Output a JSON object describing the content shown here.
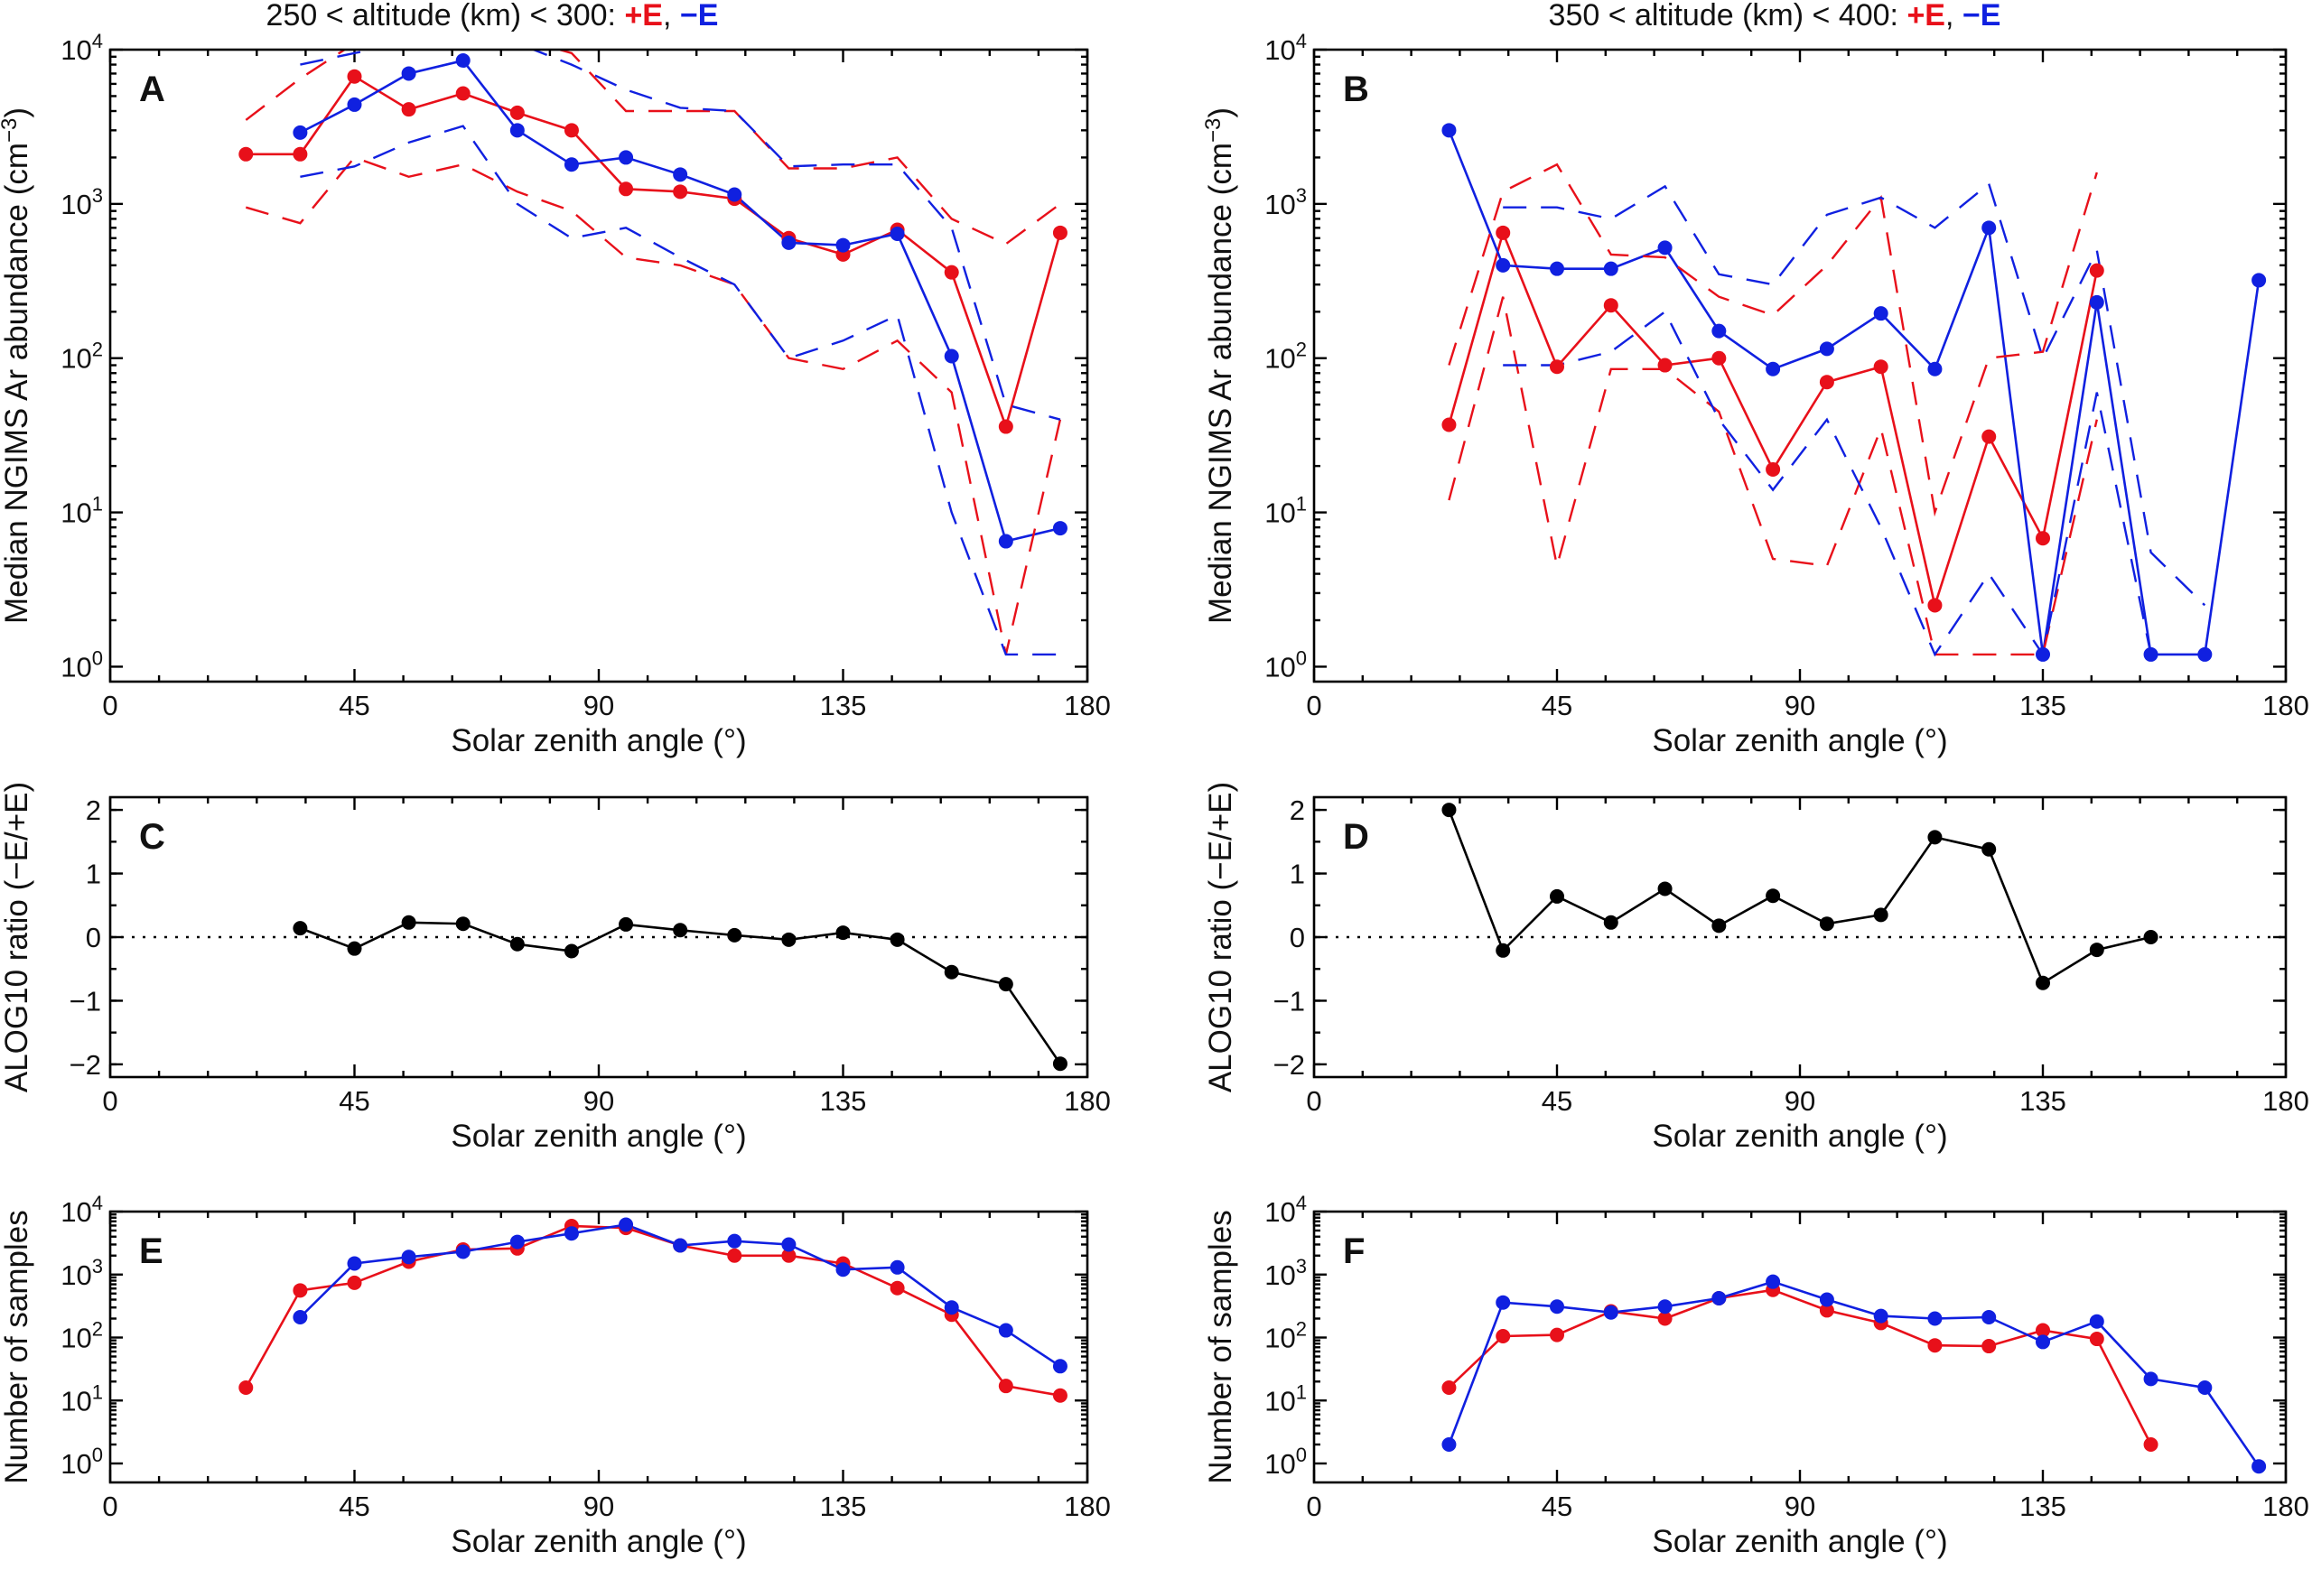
{
  "colors": {
    "plus_e": "#e8101a",
    "minus_e": "#1020e0",
    "ratio": "#000000",
    "axis": "#000000"
  },
  "titles": {
    "low": {
      "prefix": "250 < altitude (km) < 300: ",
      "plus": "+E",
      "sep": ", ",
      "minus": "−E"
    },
    "high": {
      "prefix": "350 < altitude (km) < 400: ",
      "plus": "+E",
      "sep": ", ",
      "minus": "−E"
    }
  },
  "x_ticks": [
    "0",
    "45",
    "90",
    "135",
    "180"
  ],
  "chart_data": [
    {
      "panel": "A",
      "type": "line",
      "yscale": "log",
      "title": "250 < altitude (km) < 300: +E, −E",
      "xlabel": "Solar zenith angle (°)",
      "ylabel": "Median NGIMS Ar abundance (cm⁻³)",
      "xlim": [
        0,
        180
      ],
      "ylim": [
        0.8,
        10000
      ],
      "y_tick_labels": [
        "10⁰",
        "10¹",
        "10²",
        "10³",
        "10⁴"
      ],
      "series": [
        {
          "name": "+E median",
          "color": "red",
          "style": "solid-markers",
          "x": [
            25,
            35,
            45,
            55,
            65,
            75,
            85,
            95,
            105,
            115,
            125,
            135,
            145,
            155,
            165,
            175
          ],
          "y": [
            2100,
            2100,
            6700,
            4100,
            5200,
            3900,
            3000,
            1250,
            1200,
            1080,
            600,
            470,
            680,
            360,
            36,
            650
          ]
        },
        {
          "name": "−E median",
          "color": "blue",
          "style": "solid-markers",
          "x": [
            35,
            45,
            55,
            65,
            75,
            85,
            95,
            105,
            115,
            125,
            135,
            145,
            155,
            165,
            175
          ],
          "y": [
            2900,
            4400,
            7000,
            8500,
            3000,
            1800,
            2000,
            1550,
            1150,
            560,
            540,
            640,
            103,
            6.5,
            7.9
          ]
        },
        {
          "name": "+E upper",
          "color": "red",
          "style": "dashed",
          "x": [
            25,
            35,
            45,
            55,
            65,
            75,
            85,
            95,
            105,
            115,
            125,
            135,
            145,
            155,
            165,
            175
          ],
          "y": [
            3500,
            6500,
            11000,
            11000,
            10500,
            12000,
            9500,
            4000,
            4000,
            4000,
            1700,
            1700,
            2000,
            800,
            550,
            1000
          ]
        },
        {
          "name": "+E lower",
          "color": "red",
          "style": "dashed",
          "x": [
            25,
            35,
            45,
            55,
            65,
            75,
            85,
            95,
            105,
            115,
            125,
            135,
            145,
            155,
            165,
            175
          ],
          "y": [
            950,
            750,
            2000,
            1500,
            1800,
            1200,
            900,
            450,
            400,
            300,
            100,
            85,
            130,
            60,
            1.2,
            40
          ]
        },
        {
          "name": "−E upper",
          "color": "blue",
          "style": "dashed",
          "x": [
            35,
            45,
            55,
            65,
            75,
            85,
            95,
            105,
            115,
            125,
            135,
            145,
            155,
            165,
            175
          ],
          "y": [
            8000,
            9500,
            11000,
            11000,
            11000,
            8000,
            5500,
            4200,
            4000,
            1750,
            1800,
            1800,
            700,
            50,
            40
          ]
        },
        {
          "name": "−E lower",
          "color": "blue",
          "style": "dashed",
          "x": [
            35,
            45,
            55,
            65,
            75,
            85,
            95,
            105,
            115,
            125,
            135,
            145,
            155,
            165,
            175
          ],
          "y": [
            1500,
            1750,
            2500,
            3200,
            1000,
            600,
            700,
            450,
            300,
            100,
            130,
            190,
            10,
            1.2,
            1.2
          ]
        }
      ]
    },
    {
      "panel": "B",
      "type": "line",
      "yscale": "log",
      "title": "350 < altitude (km) < 400: +E, −E",
      "xlabel": "Solar zenith angle (°)",
      "ylabel": "Median NGIMS Ar abundance (cm⁻³)",
      "xlim": [
        0,
        180
      ],
      "ylim": [
        0.8,
        10000
      ],
      "y_tick_labels": [
        "10⁰",
        "10¹",
        "10²",
        "10³",
        "10⁴"
      ],
      "series": [
        {
          "name": "+E median",
          "color": "red",
          "style": "solid-markers",
          "x": [
            25,
            35,
            45,
            55,
            65,
            75,
            85,
            95,
            105,
            115,
            125,
            135,
            145
          ],
          "y": [
            37,
            650,
            88,
            220,
            90,
            100,
            19,
            70,
            88,
            2.5,
            31,
            6.8,
            370
          ]
        },
        {
          "name": "−E median",
          "color": "blue",
          "style": "solid-markers",
          "x": [
            25,
            35,
            45,
            55,
            65,
            75,
            85,
            95,
            105,
            115,
            125,
            135,
            145,
            155,
            165,
            175
          ],
          "y": [
            3000,
            400,
            380,
            380,
            520,
            150,
            85,
            115,
            195,
            85,
            700,
            1.2,
            230,
            1.2,
            1.2,
            320
          ]
        },
        {
          "name": "+E upper",
          "color": "red",
          "style": "dashed",
          "x": [
            25,
            35,
            45,
            55,
            65,
            75,
            85,
            95,
            105,
            115,
            125,
            135,
            145
          ],
          "y": [
            90,
            1200,
            1800,
            470,
            450,
            250,
            190,
            400,
            1100,
            10,
            100,
            110,
            1600
          ]
        },
        {
          "name": "+E lower",
          "color": "red",
          "style": "dashed",
          "x": [
            25,
            35,
            45,
            55,
            65,
            75,
            85,
            95,
            105,
            115,
            125,
            135,
            145
          ],
          "y": [
            12,
            250,
            4.5,
            85,
            85,
            45,
            5,
            4.5,
            35,
            1.2,
            1.2,
            1.2,
            40
          ]
        },
        {
          "name": "−E upper",
          "color": "blue",
          "style": "dashed",
          "x": [
            35,
            45,
            55,
            65,
            75,
            85,
            95,
            105,
            115,
            125,
            135,
            145,
            155,
            165
          ],
          "y": [
            950,
            950,
            800,
            1300,
            350,
            300,
            850,
            1100,
            700,
            1350,
            100,
            500,
            5.5,
            2.5
          ]
        },
        {
          "name": "−E lower",
          "color": "blue",
          "style": "dashed",
          "x": [
            35,
            45,
            55,
            65,
            75,
            85,
            95,
            105,
            115,
            125,
            135,
            145,
            155
          ],
          "y": [
            90,
            90,
            110,
            200,
            40,
            14,
            40,
            8,
            1.2,
            4,
            1.2,
            60,
            1.2
          ]
        }
      ]
    },
    {
      "panel": "C",
      "type": "line",
      "yscale": "linear",
      "xlabel": "Solar zenith angle (°)",
      "ylabel": "ALOG10 ratio (−E/+E)",
      "xlim": [
        0,
        180
      ],
      "ylim": [
        -2.2,
        2.2
      ],
      "y_tick_labels": [
        "−2",
        "−1",
        "0",
        "1",
        "2"
      ],
      "reference_line": 0,
      "series": [
        {
          "name": "ratio",
          "color": "black",
          "style": "solid-markers",
          "x": [
            35,
            45,
            55,
            65,
            75,
            85,
            95,
            105,
            115,
            125,
            135,
            145,
            155,
            165,
            175
          ],
          "y": [
            0.14,
            -0.18,
            0.23,
            0.21,
            -0.11,
            -0.22,
            0.2,
            0.11,
            0.03,
            -0.04,
            0.07,
            -0.04,
            -0.55,
            -0.74,
            -1.99
          ]
        }
      ]
    },
    {
      "panel": "D",
      "type": "line",
      "yscale": "linear",
      "xlabel": "Solar zenith angle (°)",
      "ylabel": "ALOG10 ratio (−E/+E)",
      "xlim": [
        0,
        180
      ],
      "ylim": [
        -2.2,
        2.2
      ],
      "y_tick_labels": [
        "−2",
        "−1",
        "0",
        "1",
        "2"
      ],
      "reference_line": 0,
      "series": [
        {
          "name": "ratio",
          "color": "black",
          "style": "solid-markers",
          "x": [
            25,
            35,
            45,
            55,
            65,
            75,
            85,
            95,
            105,
            115,
            125,
            135,
            145,
            155
          ],
          "y": [
            2.0,
            -0.21,
            0.64,
            0.23,
            0.76,
            0.18,
            0.65,
            0.21,
            0.35,
            1.57,
            1.38,
            -0.72,
            -0.2,
            0.0
          ]
        }
      ]
    },
    {
      "panel": "E",
      "type": "line",
      "yscale": "log",
      "xlabel": "Solar zenith angle (°)",
      "ylabel": "Number of samples",
      "xlim": [
        0,
        180
      ],
      "ylim": [
        0.5,
        10000
      ],
      "y_tick_labels": [
        "10⁰",
        "10¹",
        "10²",
        "10³",
        "10⁴"
      ],
      "series": [
        {
          "name": "+E",
          "color": "red",
          "style": "solid-markers",
          "x": [
            25,
            35,
            45,
            55,
            65,
            75,
            85,
            95,
            105,
            115,
            125,
            135,
            145,
            155,
            165,
            175
          ],
          "y": [
            16,
            560,
            740,
            1600,
            2500,
            2600,
            5900,
            5500,
            2900,
            2000,
            2000,
            1500,
            610,
            230,
            17,
            12
          ]
        },
        {
          "name": "−E",
          "color": "blue",
          "style": "solid-markers",
          "x": [
            35,
            45,
            55,
            65,
            75,
            85,
            95,
            105,
            115,
            125,
            135,
            145,
            155,
            165,
            175
          ],
          "y": [
            210,
            1500,
            1900,
            2300,
            3300,
            4500,
            6200,
            2900,
            3400,
            3000,
            1200,
            1300,
            300,
            130,
            35
          ]
        }
      ]
    },
    {
      "panel": "F",
      "type": "line",
      "yscale": "log",
      "xlabel": "Solar zenith angle (°)",
      "ylabel": "Number of samples",
      "xlim": [
        0,
        180
      ],
      "ylim": [
        0.5,
        10000
      ],
      "y_tick_labels": [
        "10⁰",
        "10¹",
        "10²",
        "10³",
        "10⁴"
      ],
      "series": [
        {
          "name": "+E",
          "color": "red",
          "style": "solid-markers",
          "x": [
            25,
            35,
            45,
            55,
            65,
            75,
            85,
            95,
            105,
            115,
            125,
            135,
            145,
            155
          ],
          "y": [
            16,
            105,
            110,
            260,
            200,
            420,
            570,
            270,
            170,
            75,
            73,
            130,
            95,
            2
          ]
        },
        {
          "name": "−E",
          "color": "blue",
          "style": "solid-markers",
          "x": [
            25,
            35,
            45,
            55,
            65,
            75,
            85,
            95,
            105,
            115,
            125,
            135,
            145,
            155,
            165,
            175
          ],
          "y": [
            2,
            360,
            310,
            250,
            310,
            420,
            770,
            400,
            220,
            200,
            210,
            85,
            180,
            22,
            16,
            0.9
          ]
        }
      ]
    }
  ]
}
